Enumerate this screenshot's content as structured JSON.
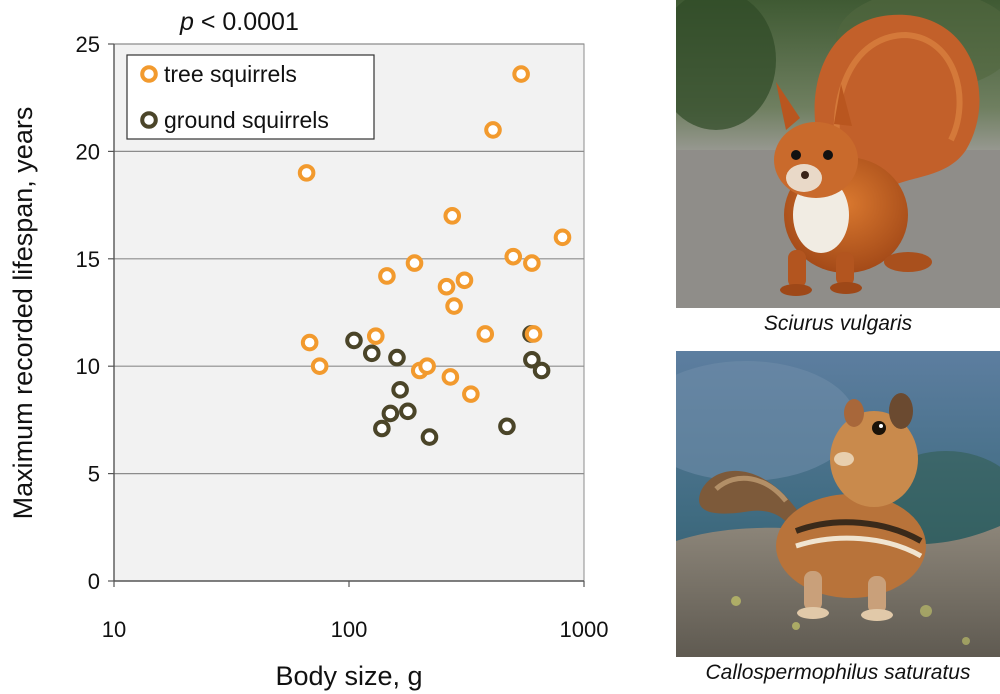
{
  "annotation": {
    "p_prefix": "p",
    "p_suffix": " < 0.0001"
  },
  "chart_data": {
    "type": "scatter",
    "xlabel": "Body size, g",
    "ylabel": "Maximum recorded lifespan, years",
    "xscale": "log",
    "xlim": [
      10,
      1000
    ],
    "ylim": [
      0,
      25
    ],
    "xticks": [
      10,
      100,
      1000
    ],
    "yticks": [
      0,
      5,
      10,
      15,
      20,
      25
    ],
    "grid": "horizontal",
    "legend_position": "top-left",
    "series": [
      {
        "name": "tree squirrels",
        "color": "#f29a2e",
        "points": [
          [
            66,
            19.0
          ],
          [
            68,
            11.1
          ],
          [
            75,
            10.0
          ],
          [
            130,
            11.4
          ],
          [
            145,
            14.2
          ],
          [
            190,
            14.8
          ],
          [
            200,
            9.8
          ],
          [
            215,
            10.0
          ],
          [
            260,
            13.7
          ],
          [
            270,
            9.5
          ],
          [
            275,
            17.0
          ],
          [
            280,
            12.8
          ],
          [
            310,
            14.0
          ],
          [
            330,
            8.7
          ],
          [
            380,
            11.5
          ],
          [
            410,
            21.0
          ],
          [
            500,
            15.1
          ],
          [
            540,
            23.6
          ],
          [
            600,
            14.8
          ],
          [
            610,
            11.5
          ],
          [
            810,
            16.0
          ]
        ]
      },
      {
        "name": "ground squirrels",
        "color": "#4b4529",
        "points": [
          [
            105,
            11.2
          ],
          [
            125,
            10.6
          ],
          [
            138,
            7.1
          ],
          [
            150,
            7.8
          ],
          [
            160,
            10.4
          ],
          [
            165,
            8.9
          ],
          [
            178,
            7.9
          ],
          [
            220,
            6.7
          ],
          [
            470,
            7.2
          ],
          [
            595,
            11.5
          ],
          [
            600,
            10.3
          ],
          [
            660,
            9.8
          ]
        ]
      }
    ]
  },
  "photos": [
    {
      "caption": "Sciurus vulgaris"
    },
    {
      "caption": "Callospermophilus saturatus"
    }
  ]
}
